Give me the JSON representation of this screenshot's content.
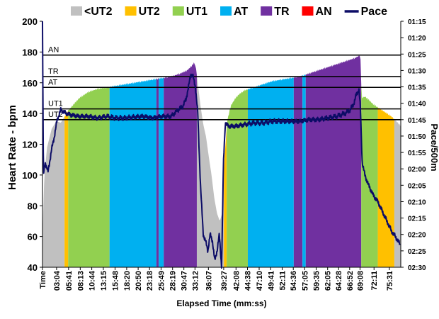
{
  "chart_data": {
    "type": "area",
    "xlabel": "Elapsed Time (mm:ss)",
    "ylabel": "Heart Rate - bpm",
    "y2label": "Pace/500m",
    "ylim": [
      40,
      200
    ],
    "yticks": [
      40,
      60,
      80,
      100,
      120,
      140,
      160,
      180,
      200
    ],
    "x_range_minutes": [
      0,
      78
    ],
    "xticks": [
      {
        "label": "Time",
        "min": 0.0
      },
      {
        "label": "03:04",
        "min": 3.07
      },
      {
        "label": "05:41",
        "min": 5.68
      },
      {
        "label": "08:13",
        "min": 8.22
      },
      {
        "label": "10:44",
        "min": 10.73
      },
      {
        "label": "13:15",
        "min": 13.25
      },
      {
        "label": "15:48",
        "min": 15.8
      },
      {
        "label": "18:20",
        "min": 18.33
      },
      {
        "label": "20:50",
        "min": 20.83
      },
      {
        "label": "23:18",
        "min": 23.3
      },
      {
        "label": "25:49",
        "min": 25.82
      },
      {
        "label": "28:19",
        "min": 28.32
      },
      {
        "label": "30:47",
        "min": 30.78
      },
      {
        "label": "33:12",
        "min": 33.2
      },
      {
        "label": "36:07",
        "min": 36.12
      },
      {
        "label": "39:27",
        "min": 39.45
      },
      {
        "label": "42:08",
        "min": 42.13
      },
      {
        "label": "44:38",
        "min": 44.63
      },
      {
        "label": "47:10",
        "min": 47.17
      },
      {
        "label": "49:41",
        "min": 49.68
      },
      {
        "label": "52:11",
        "min": 52.18
      },
      {
        "label": "54:36",
        "min": 54.6
      },
      {
        "label": "57:05",
        "min": 57.08
      },
      {
        "label": "59:35",
        "min": 59.58
      },
      {
        "label": "62:05",
        "min": 62.08
      },
      {
        "label": "64:28",
        "min": 64.47
      },
      {
        "label": "66:52",
        "min": 66.87
      },
      {
        "label": "69:08",
        "min": 69.13
      },
      {
        "label": "72:11",
        "min": 72.18
      },
      {
        "label": "75:31",
        "min": 75.52
      }
    ],
    "pace_ticks": [
      "01:15",
      "01:20",
      "01:25",
      "01:30",
      "01:35",
      "01:40",
      "01:45",
      "01:50",
      "01:55",
      "02:00",
      "02:05",
      "02:10",
      "02:15",
      "02:20",
      "02:25",
      "02:30"
    ],
    "pace_range_sec": [
      75,
      150
    ],
    "legend": [
      {
        "label": "<UT2",
        "color": "#c0c0c0",
        "kind": "box"
      },
      {
        "label": "UT2",
        "color": "#ffc000",
        "kind": "box"
      },
      {
        "label": "UT1",
        "color": "#92d050",
        "kind": "box"
      },
      {
        "label": "AT",
        "color": "#00b0f0",
        "kind": "box"
      },
      {
        "label": "TR",
        "color": "#7030a0",
        "kind": "box"
      },
      {
        "label": "AN",
        "color": "#ff0000",
        "kind": "box"
      },
      {
        "label": "Pace",
        "color": "#0c0c66",
        "kind": "line"
      }
    ],
    "threshold_lines": [
      {
        "label": "AN",
        "bpm": 178
      },
      {
        "label": "TR",
        "bpm": 164
      },
      {
        "label": "AT",
        "bpm": 157
      },
      {
        "label": "UT1",
        "bpm": 143
      },
      {
        "label": "UT2",
        "bpm": 136
      }
    ],
    "zone_colors": {
      "<UT2": "#c0c0c0",
      "UT2": "#ffc000",
      "UT1": "#92d050",
      "AT": "#00b0f0",
      "TR": "#7030a0",
      "AN": "#ff0000"
    },
    "zone_segments": [
      {
        "zone": "<UT2",
        "start": 0.0,
        "end": 4.8
      },
      {
        "zone": "UT2",
        "start": 4.8,
        "end": 5.6
      },
      {
        "zone": "UT1",
        "start": 5.6,
        "end": 14.6
      },
      {
        "zone": "AT",
        "start": 14.6,
        "end": 24.8
      },
      {
        "zone": "TR",
        "start": 24.8,
        "end": 25.3
      },
      {
        "zone": "AT",
        "start": 25.3,
        "end": 26.4
      },
      {
        "zone": "TR",
        "start": 26.4,
        "end": 33.6
      },
      {
        "zone": "<UT2",
        "start": 33.6,
        "end": 39.5
      },
      {
        "zone": "UT2",
        "start": 39.5,
        "end": 40.1
      },
      {
        "zone": "UT1",
        "start": 40.1,
        "end": 44.7
      },
      {
        "zone": "AT",
        "start": 44.7,
        "end": 54.7
      },
      {
        "zone": "TR",
        "start": 54.7,
        "end": 56.6
      },
      {
        "zone": "AT",
        "start": 56.6,
        "end": 57.3
      },
      {
        "zone": "TR",
        "start": 57.3,
        "end": 69.4
      },
      {
        "zone": "UT1",
        "start": 69.4,
        "end": 73.0
      },
      {
        "zone": "UT2",
        "start": 73.0,
        "end": 76.6
      },
      {
        "zone": "<UT2",
        "start": 76.6,
        "end": 78.0
      }
    ],
    "heart_rate": {
      "t": [
        0.0,
        0.4,
        1.0,
        2.0,
        3.0,
        4.0,
        4.8,
        5.6,
        6.5,
        8.0,
        10.0,
        12.0,
        14.0,
        16.0,
        18.0,
        20.0,
        22.0,
        24.0,
        26.0,
        28.0,
        30.0,
        31.5,
        32.5,
        33.0,
        33.4,
        33.8,
        34.4,
        35.0,
        35.6,
        36.2,
        36.8,
        37.4,
        38.0,
        38.6,
        39.2,
        39.6,
        40.2,
        41.0,
        42.0,
        43.0,
        44.0,
        46.0,
        48.0,
        50.0,
        52.0,
        54.0,
        56.0,
        58.0,
        60.0,
        62.0,
        64.0,
        66.0,
        68.0,
        69.2,
        69.5,
        70.2,
        71.0,
        72.0,
        73.0,
        74.0,
        75.0,
        76.0,
        77.0,
        78.0
      ],
      "bpm": [
        60,
        100,
        118,
        130,
        135,
        134,
        138,
        142,
        145,
        150,
        154,
        156,
        157,
        158,
        159,
        160,
        161,
        162,
        163,
        164,
        166,
        168,
        171,
        173,
        170,
        160,
        145,
        133,
        125,
        112,
        100,
        85,
        75,
        70,
        76,
        110,
        135,
        145,
        150,
        153,
        155,
        157,
        159,
        161,
        162,
        163,
        164,
        166,
        168,
        170,
        172,
        174,
        176,
        178,
        150,
        151,
        149,
        146,
        144,
        142,
        140,
        138,
        135,
        132
      ]
    },
    "pace": {
      "t": [
        0.0,
        0.2,
        0.6,
        1.2,
        2.0,
        2.6,
        3.2,
        4.0,
        5.0,
        6.0,
        8.0,
        10.0,
        12.0,
        14.0,
        16.0,
        18.0,
        20.0,
        22.0,
        24.0,
        26.0,
        28.0,
        29.5,
        30.5,
        31.2,
        31.8,
        32.3,
        32.8,
        33.3,
        33.8,
        34.4,
        35.0,
        35.5,
        36.0,
        36.5,
        37.0,
        37.5,
        38.0,
        38.5,
        39.0,
        39.4,
        39.8,
        40.5,
        42.0,
        44.0,
        46.0,
        48.0,
        50.0,
        52.0,
        54.0,
        56.0,
        58.0,
        60.0,
        62.0,
        64.0,
        66.0,
        67.0,
        67.8,
        68.4,
        68.9,
        69.2,
        69.6,
        70.2,
        71.0,
        72.0,
        73.0,
        74.0,
        75.0,
        76.0,
        77.0,
        77.8
      ],
      "sec": [
        75,
        122,
        118,
        121,
        114,
        110,
        105,
        102,
        103,
        103.5,
        104,
        104,
        104.5,
        104,
        104.5,
        104.5,
        104.2,
        104,
        104.5,
        104,
        104,
        102,
        101,
        99,
        95,
        91,
        92,
        95,
        103,
        125,
        140,
        142,
        145,
        140,
        142,
        148,
        145,
        140,
        150,
        118,
        106,
        107,
        107,
        106.5,
        106,
        106,
        105.5,
        105.5,
        105.5,
        105.5,
        105,
        105,
        104.5,
        104,
        103,
        102,
        100,
        97,
        96,
        101,
        118,
        122,
        125,
        128,
        130,
        133,
        136,
        139,
        141,
        143
      ]
    }
  }
}
